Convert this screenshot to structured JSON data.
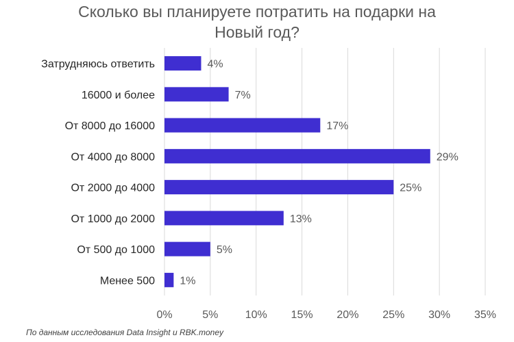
{
  "chart_data": {
    "type": "bar",
    "orientation": "horizontal",
    "title_lines": [
      "Сколько вы планируете потратить на подарки на",
      "Новый год?"
    ],
    "categories": [
      "Затрудняюсь ответить",
      "16000 и более",
      "От 8000 до 16000",
      "От 4000 до 8000",
      "От 2000 до 4000",
      "От 1000 до 2000",
      "От 500 до 1000",
      "Менее 500"
    ],
    "values": [
      4,
      7,
      17,
      29,
      25,
      13,
      5,
      1
    ],
    "data_labels": [
      "4%",
      "7%",
      "17%",
      "29%",
      "25%",
      "13%",
      "5%",
      "1%"
    ],
    "x_ticks": [
      0,
      5,
      10,
      15,
      20,
      25,
      30,
      35
    ],
    "x_tick_labels": [
      "0%",
      "5%",
      "10%",
      "15%",
      "20%",
      "25%",
      "30%",
      "35%"
    ],
    "xlim": [
      0,
      35
    ],
    "grid": true,
    "bar_color": "#3f2ed1"
  },
  "source_note": "По данным исследования Data Insight и RBK.money"
}
